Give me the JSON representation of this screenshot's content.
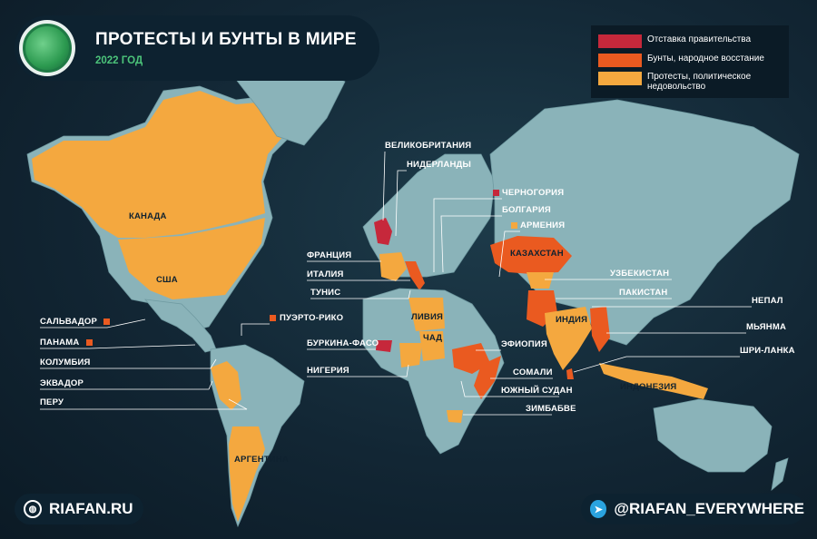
{
  "header": {
    "title": "ПРОТЕСТЫ И БУНТЫ В МИРЕ",
    "subtitle": "2022 ГОД",
    "logo_icon": "globe-icon"
  },
  "legend": {
    "items": [
      {
        "label": "Отставка правительства",
        "color": "#c6283b"
      },
      {
        "label": "Бунты, народное восстание",
        "color": "#ea5a20"
      },
      {
        "label": "Протесты, политическое недовольство",
        "color": "#f4a83f"
      }
    ]
  },
  "colors": {
    "background": "#122634",
    "land": "#8ab3b9",
    "accent": "#4cc47a"
  },
  "labels": {
    "canada": "КАНАДА",
    "usa": "США",
    "salvador": "САЛЬВАДОР",
    "panama": "ПАНАМА",
    "colombia": "КОЛУМБИЯ",
    "ecuador": "ЭКВАДОР",
    "peru": "ПЕРУ",
    "argentina": "АРГЕНТИНА",
    "puerto_rico": "ПУЭРТО-РИКО",
    "uk": "ВЕЛИКОБРИТАНИЯ",
    "netherlands": "НИДЕРЛАНДЫ",
    "france": "ФРАНЦИЯ",
    "italy": "ИТАЛИЯ",
    "tunisia": "ТУНИС",
    "libya": "ЛИВИЯ",
    "chad": "ЧАД",
    "burkina": "БУРКИНА-ФАСО",
    "nigeria": "НИГЕРИЯ",
    "montenegro": "ЧЕРНОГОРИЯ",
    "bulgaria": "БОЛГАРИЯ",
    "armenia": "АРМЕНИЯ",
    "kazakhstan": "КАЗАХСТАН",
    "uzbekistan": "УЗБЕКИСТАН",
    "pakistan": "ПАКИСТАН",
    "nepal": "НЕПАЛ",
    "india": "ИНДИЯ",
    "myanmar": "МЬЯНМА",
    "srilanka": "ШРИ-ЛАНКА",
    "ethiopia": "ЭФИОПИЯ",
    "somalia": "СОМАЛИ",
    "south_sudan": "ЮЖНЫЙ СУДАН",
    "zimbabwe": "ЗИМБАБВЕ",
    "indonesia": "ИНДОНЕЗИЯ"
  },
  "footer": {
    "site": "RIAFAN.RU",
    "site_icon": "globe-icon",
    "telegram": "@RIAFAN_EVERYWHERE",
    "telegram_icon": "telegram-icon"
  }
}
